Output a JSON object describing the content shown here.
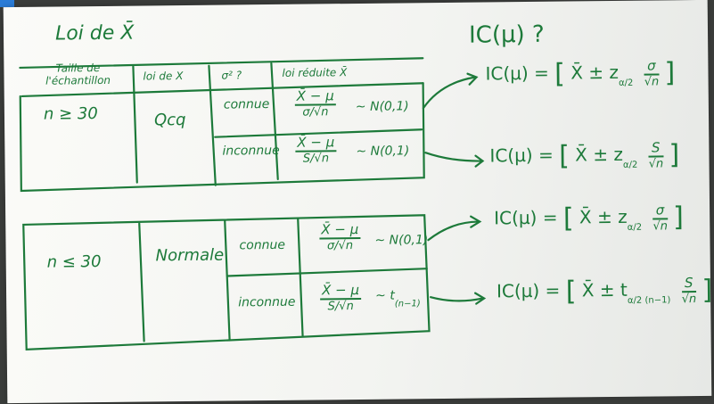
{
  "title": "Loi de X̄",
  "table1": {
    "headers": [
      "Taille de l'échantillon",
      "loi de X",
      "σ² ?",
      "loi réduite X̄"
    ],
    "sample": "n ≥ 30",
    "law_x": "Qcq",
    "rows": [
      {
        "sigma": "connue",
        "num": "X̄ − μ",
        "den": "σ/√n",
        "law": "∼ N(0,1)"
      },
      {
        "sigma": "inconnue",
        "num": "X̄ − μ",
        "den": "S/√n",
        "law": "∼ N(0,1)"
      }
    ]
  },
  "table2": {
    "sample": "n ≤ 30",
    "law_x": "Normale",
    "rows": [
      {
        "sigma": "connue",
        "num": "X̄ − μ",
        "den": "σ/√n",
        "law": "∼ N(0,1)"
      },
      {
        "sigma": "inconnue",
        "num": "X̄ − μ",
        "den": "S/√n",
        "law": "∼ t",
        "law_sub": "(n−1)"
      }
    ]
  },
  "ic_title": "IC(μ) ?",
  "formulas": [
    {
      "lhs": "IC(μ) =",
      "body": "X̄ ± z",
      "sub": "α/2",
      "num": "σ",
      "den": "√n"
    },
    {
      "lhs": "IC(μ) =",
      "body": "X̄ ± z",
      "sub": "α/2",
      "num": "S",
      "den": "√n"
    },
    {
      "lhs": "IC(μ) =",
      "body": "X̄ ± z",
      "sub": "α/2",
      "num": "σ",
      "den": "√n"
    },
    {
      "lhs": "IC(μ) =",
      "body": "X̄ ± t",
      "sub": "α/2 (n−1)",
      "num": "S",
      "den": "√n"
    }
  ]
}
